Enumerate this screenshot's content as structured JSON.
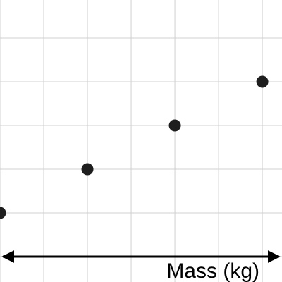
{
  "chart_data": {
    "type": "scatter",
    "x_label": "Mass (kg)",
    "x": [
      0,
      2,
      4,
      6
    ],
    "values": [
      1,
      2,
      3,
      4
    ],
    "color": "#1e1e1e",
    "xlim": [
      0,
      6.45
    ],
    "ylim": [
      -0.58,
      5.87
    ],
    "xticks": [
      0,
      1,
      2,
      3,
      4,
      5,
      6
    ],
    "yticks": [
      0,
      1,
      2,
      3,
      4,
      5
    ],
    "grid": true
  }
}
